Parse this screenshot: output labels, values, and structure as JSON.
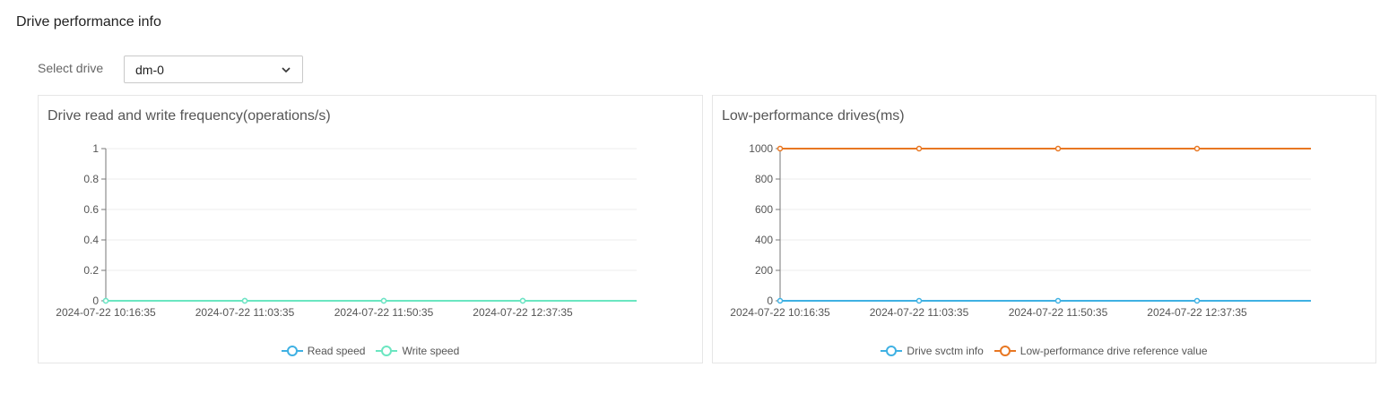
{
  "page": {
    "title": "Drive performance info",
    "drive_select_label": "Select drive",
    "drive_selected": "dm-0"
  },
  "chart_data": [
    {
      "type": "line",
      "title": "Drive read and write frequency(operations/s)",
      "x": [
        "2024-07-22 10:16:35",
        "2024-07-22 11:03:35",
        "2024-07-22 11:50:35",
        "2024-07-22 12:37:35"
      ],
      "ylim": [
        0,
        1
      ],
      "yticks": [
        "0",
        "0.2",
        "0.4",
        "0.6",
        "0.8",
        "1"
      ],
      "grid": true,
      "legend": "bottom",
      "series": [
        {
          "name": "Read speed",
          "color": "#3fb1e3",
          "values": [
            0,
            0,
            0,
            0
          ]
        },
        {
          "name": "Write speed",
          "color": "#6be6c1",
          "values": [
            0,
            0,
            0,
            0
          ]
        }
      ]
    },
    {
      "type": "line",
      "title": "Low-performance drives(ms)",
      "x": [
        "2024-07-22 10:16:35",
        "2024-07-22 11:03:35",
        "2024-07-22 11:50:35",
        "2024-07-22 12:37:35"
      ],
      "ylim": [
        0,
        1000
      ],
      "yticks": [
        "0",
        "200",
        "400",
        "600",
        "800",
        "1000"
      ],
      "grid": true,
      "legend": "bottom",
      "series": [
        {
          "name": "Drive svctm info",
          "color": "#3fb1e3",
          "values": [
            0,
            0,
            0,
            0
          ]
        },
        {
          "name": "Low-performance drive reference value",
          "color": "#e87722",
          "values": [
            1000,
            1000,
            1000,
            1000
          ]
        }
      ]
    }
  ]
}
